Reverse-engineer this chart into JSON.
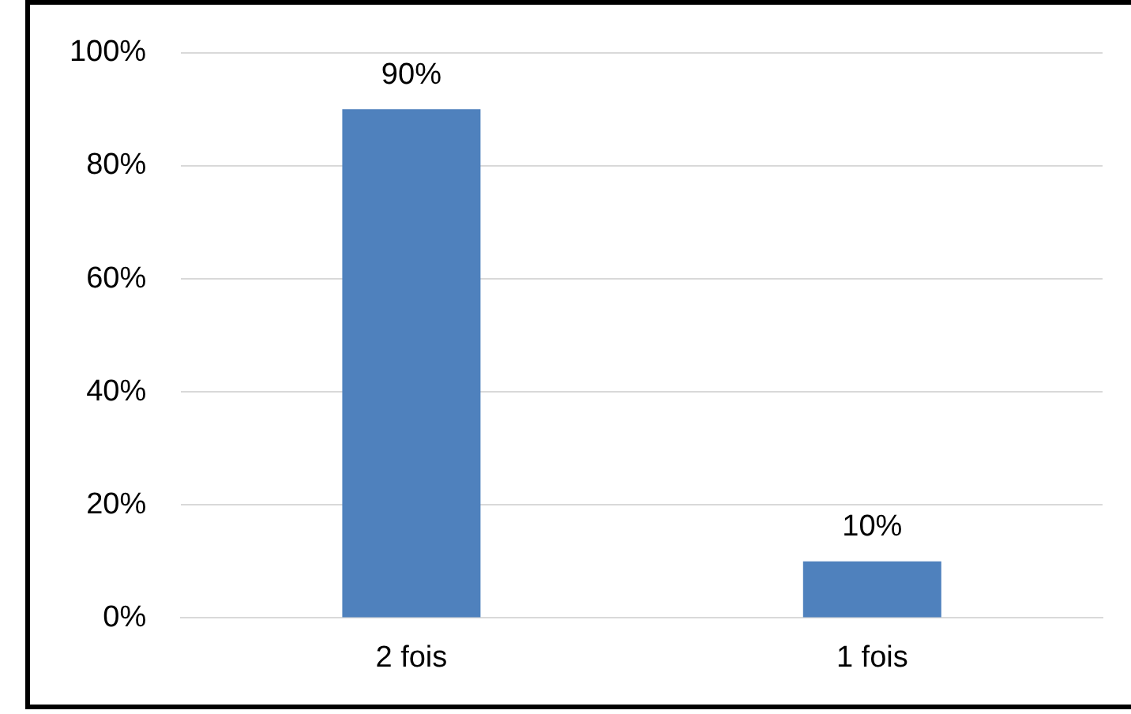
{
  "chart_data": {
    "type": "bar",
    "categories": [
      "2 fois",
      "1 fois"
    ],
    "values": [
      90,
      10
    ],
    "color": "#4f81bd",
    "value_labels": [
      "90%",
      "10%"
    ],
    "ylim": [
      0,
      100
    ],
    "yticks": [
      {
        "value": 0,
        "label": "0%"
      },
      {
        "value": 20,
        "label": "20%"
      },
      {
        "value": 40,
        "label": "40%"
      },
      {
        "value": 60,
        "label": "60%"
      },
      {
        "value": 80,
        "label": "80%"
      },
      {
        "value": 100,
        "label": "100%"
      }
    ],
    "grid": "y",
    "legend": false
  }
}
